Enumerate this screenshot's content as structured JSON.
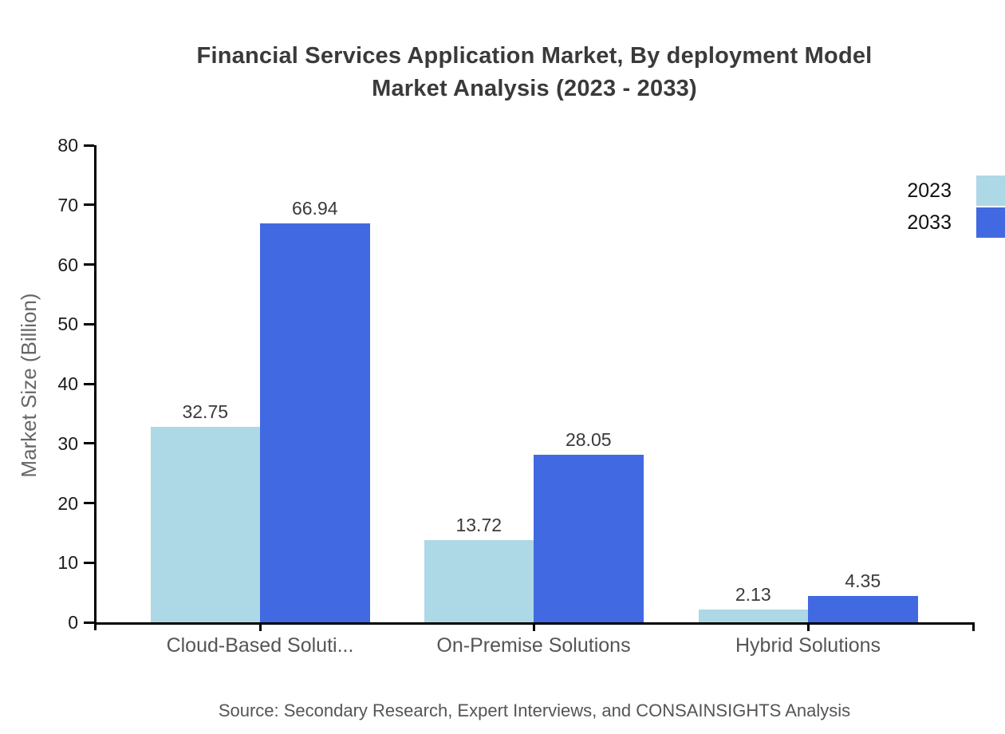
{
  "header": {
    "title_line1": "Financial Services Application Market, By deployment Model",
    "title_line2": "Market Analysis (2023 - 2033)"
  },
  "source": "Source: Secondary Research, Expert Interviews, and CONSAINSIGHTS Analysis",
  "colors": {
    "series_2023": "#ADD8E6",
    "series_2033": "#4169E1",
    "axis": "#000000",
    "title_text": "#3a3a3a",
    "category_text": "#555555",
    "value_text": "#3a3a3a"
  },
  "chart_data": {
    "type": "bar",
    "title": "Financial Services Application Market, By deployment Model Market Analysis (2023 - 2033)",
    "categories": [
      "Cloud-Based Soluti...",
      "On-Premise Solutions",
      "Hybrid Solutions"
    ],
    "series": [
      {
        "name": "2023",
        "color": "#ADD8E6",
        "values": [
          32.75,
          13.72,
          2.13
        ]
      },
      {
        "name": "2033",
        "color": "#4169E1",
        "values": [
          66.94,
          28.05,
          4.35
        ]
      }
    ],
    "data_labels": [
      [
        "32.75",
        "13.72",
        "2.13"
      ],
      [
        "66.94",
        "28.05",
        "4.35"
      ]
    ],
    "xlabel": "",
    "ylabel": "Market Size (Billion)",
    "ylim": [
      0,
      80
    ],
    "yticks": [
      0,
      10,
      20,
      30,
      40,
      50,
      60,
      70,
      80
    ],
    "grid": false,
    "legend_position": "top-right",
    "legend_labels": [
      "2023",
      "2033"
    ]
  }
}
